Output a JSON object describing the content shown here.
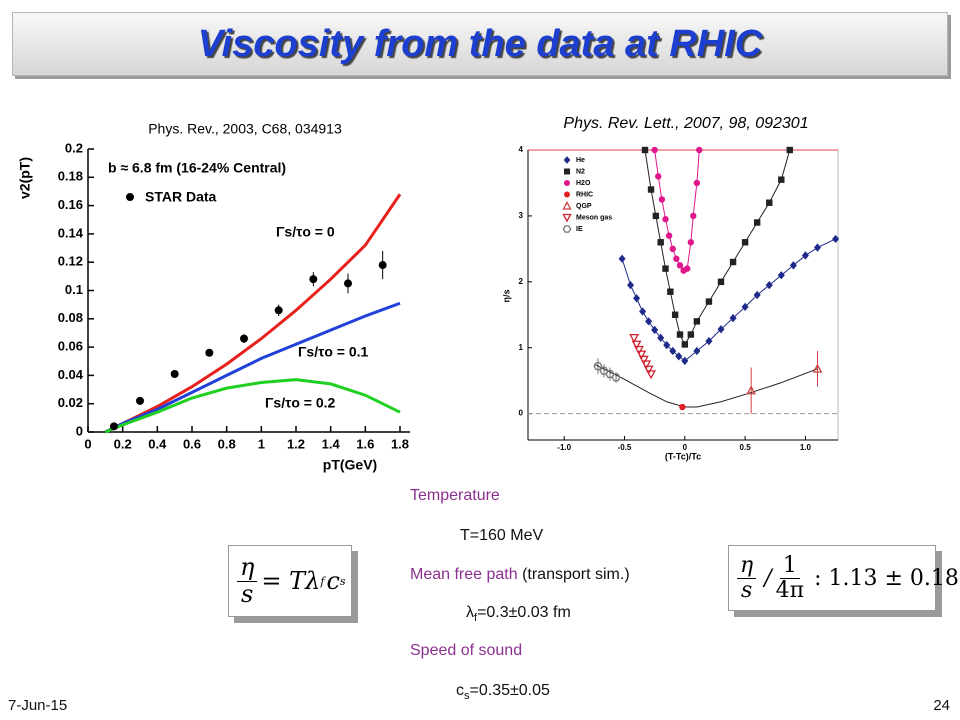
{
  "title": "Viscosity from the data at RHIC",
  "chart_data": [
    {
      "type": "line",
      "caption": "Phys. Rev., 2003, C68, 034913",
      "x_label": "pT(GeV)",
      "y_label": "v2(pT)",
      "xlim": [
        0,
        1.8
      ],
      "ylim": [
        0,
        0.2
      ],
      "xticks": [
        0,
        0.2,
        0.4,
        0.6,
        0.8,
        1,
        1.2,
        1.4,
        1.6,
        1.8
      ],
      "yticks": [
        0,
        0.02,
        0.04,
        0.06,
        0.08,
        0.1,
        0.12,
        0.14,
        0.16,
        0.18,
        0.2
      ],
      "annotations": [
        "b ≈ 6.8 fm (16-24% Central)",
        "Γs/τo = 0",
        "Γs/τo = 0.1",
        "Γs/τo = 0.2"
      ],
      "series": [
        {
          "color": "#e8201c",
          "marker": "line",
          "x": [
            0.1,
            0.2,
            0.4,
            0.6,
            0.8,
            1,
            1.2,
            1.4,
            1.6,
            1.8
          ],
          "values": [
            0,
            0.006,
            0.018,
            0.032,
            0.048,
            0.066,
            0.086,
            0.108,
            0.132,
            0.168
          ]
        },
        {
          "color": "#2040d8",
          "marker": "line",
          "x": [
            0.1,
            0.2,
            0.4,
            0.6,
            0.8,
            1,
            1.2,
            1.4,
            1.6,
            1.8
          ],
          "values": [
            0,
            0.006,
            0.016,
            0.028,
            0.04,
            0.052,
            0.062,
            0.072,
            0.082,
            0.091
          ]
        },
        {
          "color": "#20d020",
          "marker": "line",
          "x": [
            0.1,
            0.2,
            0.4,
            0.6,
            0.8,
            1,
            1.2,
            1.4,
            1.6,
            1.8
          ],
          "values": [
            0,
            0.005,
            0.014,
            0.024,
            0.031,
            0.035,
            0.037,
            0.034,
            0.026,
            0.014
          ]
        },
        {
          "name": "STAR Data",
          "color": "#000000",
          "marker": "circle",
          "x": [
            0.15,
            0.3,
            0.5,
            0.7,
            0.9,
            1.1,
            1.3,
            1.5,
            1.7
          ],
          "values": [
            0.004,
            0.022,
            0.041,
            0.056,
            0.066,
            0.086,
            0.108,
            0.105,
            0.118
          ],
          "errors": [
            0.002,
            0.002,
            0.002,
            0.002,
            0.003,
            0.004,
            0.005,
            0.007,
            0.01
          ]
        }
      ]
    },
    {
      "type": "scatter",
      "caption": "Phys. Rev. Lett., 2007, 98, 092301",
      "x_label": "(T-Tc)/Tc",
      "y_label": "η/s",
      "xlim": [
        -1.3,
        1.27
      ],
      "ylim": [
        -0.4,
        4
      ],
      "xticks": [
        {
          "value": -1,
          "label": "-1.0"
        },
        {
          "value": -0.5,
          "label": "-0.5"
        },
        0,
        0.5,
        {
          "value": 1,
          "label": "1.0"
        }
      ],
      "yticks": [
        0,
        1,
        2,
        3,
        4
      ],
      "series": [
        {
          "name": "He",
          "color": "#1f2a8a",
          "marker": "diamond",
          "connect": true,
          "x": [
            -0.52,
            -0.45,
            -0.4,
            -0.35,
            -0.3,
            -0.25,
            -0.2,
            -0.15,
            -0.1,
            -0.05,
            0,
            0.1,
            0.2,
            0.3,
            0.4,
            0.5,
            0.6,
            0.7,
            0.8,
            0.9,
            1,
            1.1,
            1.25
          ],
          "values": [
            2.35,
            1.95,
            1.75,
            1.55,
            1.4,
            1.27,
            1.15,
            1.04,
            0.95,
            0.87,
            0.8,
            0.95,
            1.1,
            1.28,
            1.45,
            1.62,
            1.8,
            1.95,
            2.1,
            2.25,
            2.4,
            2.52,
            2.65
          ]
        },
        {
          "name": "N2",
          "color": "#222222",
          "marker": "square",
          "connect": true,
          "x": [
            -0.33,
            -0.28,
            -0.24,
            -0.2,
            -0.16,
            -0.12,
            -0.08,
            -0.04,
            0,
            0.05,
            0.1,
            0.2,
            0.3,
            0.4,
            0.5,
            0.6,
            0.7,
            0.8,
            0.87
          ],
          "values": [
            4,
            3.4,
            3.0,
            2.6,
            2.2,
            1.85,
            1.5,
            1.2,
            1.05,
            1.2,
            1.4,
            1.7,
            2.0,
            2.3,
            2.6,
            2.9,
            3.2,
            3.55,
            4
          ]
        },
        {
          "name": "H2O",
          "color": "#e0168c",
          "marker": "circle",
          "connect": true,
          "x": [
            -0.25,
            -0.22,
            -0.19,
            -0.16,
            -0.13,
            -0.1,
            -0.07,
            -0.04,
            -0.01,
            0.02,
            0.05,
            0.07,
            0.1,
            0.12
          ],
          "values": [
            4,
            3.6,
            3.25,
            2.95,
            2.7,
            2.5,
            2.35,
            2.25,
            2.17,
            2.2,
            2.6,
            3.0,
            3.5,
            4
          ]
        },
        {
          "name": "RHIC",
          "color": "#e02020",
          "marker": "circle",
          "x": [
            -0.02
          ],
          "values": [
            0.1
          ]
        },
        {
          "name": "QGP",
          "color": "#d04040",
          "marker": "triangle-up",
          "x": [
            0.55,
            1.1
          ],
          "values": [
            0.35,
            0.68
          ],
          "errors": [
            0.35,
            0.27
          ]
        },
        {
          "name": "Meson gas",
          "color": "#d02030",
          "marker": "triangle-down",
          "x": [
            -0.42,
            -0.4,
            -0.38,
            -0.36,
            -0.34,
            -0.32,
            -0.3,
            -0.28
          ],
          "values": [
            1.15,
            1.05,
            0.97,
            0.9,
            0.82,
            0.75,
            0.67,
            0.6
          ]
        },
        {
          "name": "IE",
          "color": "#777777",
          "marker": "hexagon",
          "x": [
            -0.72,
            -0.67,
            -0.62,
            -0.57
          ],
          "values": [
            0.72,
            0.65,
            0.6,
            0.55
          ],
          "errors": [
            0.12,
            0.1,
            0.1,
            0.08
          ]
        },
        {
          "color": "#222222",
          "marker": "line",
          "x": [
            -0.75,
            -0.5,
            -0.3,
            -0.15,
            0,
            0.1,
            0.3,
            0.55,
            0.8,
            1.1
          ],
          "values": [
            0.75,
            0.52,
            0.32,
            0.18,
            0.1,
            0.1,
            0.18,
            0.32,
            0.47,
            0.68
          ]
        }
      ]
    }
  ],
  "notes": {
    "temperature_label": "Temperature",
    "temperature_value": "T=160 MeV",
    "mfp_label": "Mean free path",
    "mfp_note": "(transport sim.)",
    "mfp_symbol": "λ",
    "mfp_sub": "f",
    "mfp_value": "=0.3±0.03 fm",
    "sound_label": "Speed of sound",
    "sound_symbol": "c",
    "sound_sub": "s",
    "sound_value": "=0.35±0.05"
  },
  "formula_left": {
    "numerator": "η",
    "denominator": "s",
    "rhs": "= Tλ",
    "sub1": "f",
    "c": "c",
    "sub2": "s"
  },
  "formula_right": {
    "numerator": "η",
    "denominator": "s",
    "divide": "/",
    "numerator2": "1",
    "denominator2": "4π",
    "rhs": ": 1.13 ± 0.18"
  },
  "footer": {
    "date": "7-Jun-15",
    "page": "24"
  }
}
